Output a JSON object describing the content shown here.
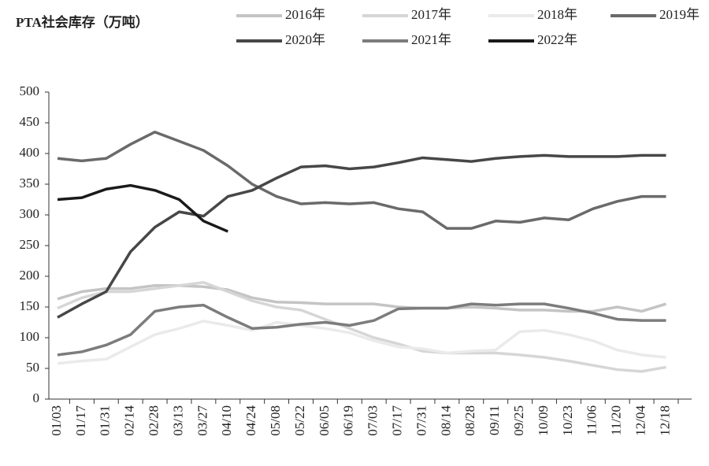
{
  "chart_data": {
    "type": "line",
    "title": "PTA社会库存（万吨）",
    "categories": [
      "01/03",
      "01/17",
      "01/31",
      "02/14",
      "02/28",
      "03/13",
      "03/27",
      "04/10",
      "04/24",
      "05/08",
      "05/22",
      "06/05",
      "06/19",
      "07/03",
      "07/17",
      "07/31",
      "08/14",
      "08/28",
      "09/11",
      "09/25",
      "10/09",
      "10/23",
      "11/06",
      "11/20",
      "12/04",
      "12/18"
    ],
    "series": [
      {
        "name": "2016年",
        "color": "#c4c4c4",
        "values": [
          163,
          175,
          180,
          180,
          185,
          185,
          183,
          178,
          165,
          158,
          157,
          155,
          155,
          155,
          150,
          148,
          148,
          150,
          148,
          145,
          145,
          143,
          143,
          150,
          143,
          155
        ]
      },
      {
        "name": "2017年",
        "color": "#d6d6d6",
        "values": [
          148,
          165,
          175,
          175,
          180,
          185,
          190,
          175,
          160,
          150,
          145,
          130,
          115,
          100,
          90,
          78,
          75,
          75,
          75,
          72,
          68,
          62,
          55,
          48,
          45,
          52
        ]
      },
      {
        "name": "2018年",
        "color": "#eaeaea",
        "values": [
          58,
          62,
          65,
          85,
          105,
          115,
          127,
          120,
          112,
          125,
          120,
          115,
          108,
          95,
          85,
          82,
          75,
          78,
          80,
          110,
          112,
          105,
          95,
          80,
          72,
          68
        ]
      },
      {
        "name": "2019年",
        "color": "#6a6a6a",
        "values": [
          392,
          388,
          392,
          415,
          435,
          420,
          405,
          380,
          350,
          330,
          318,
          320,
          318,
          320,
          310,
          305,
          278,
          278,
          290,
          288,
          295,
          292,
          310,
          322,
          330,
          330
        ]
      },
      {
        "name": "2020年",
        "color": "#474747",
        "values": [
          133,
          155,
          175,
          240,
          280,
          305,
          298,
          330,
          340,
          360,
          378,
          380,
          375,
          378,
          385,
          393,
          390,
          387,
          392,
          395,
          397,
          395,
          395,
          395,
          397,
          397
        ]
      },
      {
        "name": "2021年",
        "color": "#7c7c7c",
        "values": [
          72,
          77,
          88,
          105,
          143,
          150,
          153,
          133,
          115,
          117,
          122,
          125,
          120,
          128,
          147,
          148,
          148,
          155,
          153,
          155,
          155,
          148,
          140,
          130,
          128,
          128
        ]
      },
      {
        "name": "2022年",
        "color": "#1a1a1a",
        "values": [
          325,
          328,
          342,
          348,
          340,
          325,
          290,
          273,
          null,
          null,
          null,
          null,
          null,
          null,
          null,
          null,
          null,
          null,
          null,
          null,
          null,
          null,
          null,
          null,
          null,
          null
        ]
      }
    ],
    "ylim": [
      0,
      500
    ],
    "yticks": [
      0,
      50,
      100,
      150,
      200,
      250,
      300,
      350,
      400,
      450,
      500
    ]
  }
}
